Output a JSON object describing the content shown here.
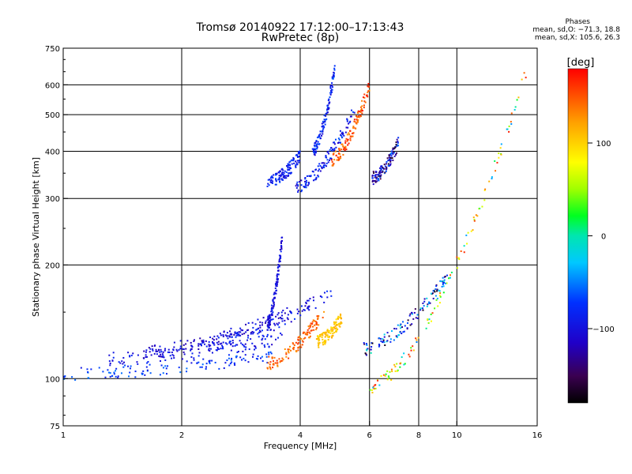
{
  "header": {
    "title": "Tromsø 20140922 17:12:00–17:13:43",
    "subtitle": "RwPretec (8p)",
    "phase_heading": "Phases",
    "phase_o": "mean, sd,O: −71.3, 18.8",
    "phase_x": "mean, sd,X: 105.6, 26.3"
  },
  "chart_data": {
    "type": "scatter",
    "title": "Tromsø 20140922 17:12:00–17:13:43",
    "subtitle": "RwPretec (8p)",
    "xlabel": "Frequency [MHz]",
    "ylabel": "Stationary phase Virtual Height [km]",
    "xscale": "log",
    "yscale": "log",
    "xlim": [
      1,
      16
    ],
    "ylim": [
      75,
      750
    ],
    "xticks": [
      1,
      2,
      4,
      6,
      8,
      10,
      16
    ],
    "xtick_labels": [
      "1",
      "2",
      "4",
      "6",
      "8",
      "10",
      "16"
    ],
    "yticks": [
      75,
      100,
      200,
      300,
      400,
      500,
      600,
      750
    ],
    "ytick_labels": [
      "75",
      "100",
      "200",
      "300",
      "400",
      "500",
      "600",
      "750"
    ],
    "x_gridlines": [
      2,
      4,
      6,
      8,
      10
    ],
    "y_gridlines": [
      100,
      200,
      300,
      400,
      500,
      600
    ],
    "grid": true,
    "colorbar": {
      "label": "[deg]",
      "range": [
        -180,
        180
      ],
      "ticks": [
        100,
        0,
        -100
      ],
      "tick_labels": [
        "100",
        "0",
        "−100"
      ],
      "colormap": "rainbow (black → purple → blue → cyan → green → yellow → orange → red)"
    },
    "traces": [
      {
        "name": "",
        "x_range": [
          1.0,
          3.4
        ],
        "h_start": 103,
        "h_end": 115,
        "phase": -75,
        "spread": 25
      },
      {
        "name": "",
        "x_range": [
          1.3,
          3.6
        ],
        "h_start": 113,
        "h_end": 128,
        "phase": -95,
        "spread": 20
      },
      {
        "name": "",
        "x_range": [
          1.6,
          3.8
        ],
        "h_start": 118,
        "h_end": 150,
        "phase": -105,
        "spread": 20
      },
      {
        "name": "",
        "x_range": [
          2.2,
          4.8
        ],
        "h_start": 122,
        "h_end": 170,
        "phase": -95,
        "spread": 25
      },
      {
        "name": "",
        "x_range": [
          3.3,
          3.6
        ],
        "h_start": 140,
        "h_end": 235,
        "phase": -100,
        "spread": 20
      },
      {
        "name": "",
        "x_range": [
          3.3,
          4.6
        ],
        "h_start": 110,
        "h_end": 150,
        "phase": 145,
        "spread": 20
      },
      {
        "name": "",
        "x_range": [
          4.4,
          5.1
        ],
        "h_start": 125,
        "h_end": 145,
        "phase": 105,
        "spread": 15
      },
      {
        "name": "",
        "x_range": [
          3.3,
          4.0
        ],
        "h_start": 330,
        "h_end": 390,
        "phase": -85,
        "spread": 20
      },
      {
        "name": "",
        "x_range": [
          3.9,
          5.5
        ],
        "h_start": 320,
        "h_end": 520,
        "phase": -90,
        "spread": 30
      },
      {
        "name": "",
        "x_range": [
          4.3,
          4.9
        ],
        "h_start": 400,
        "h_end": 660,
        "phase": -85,
        "spread": 25
      },
      {
        "name": "",
        "x_range": [
          4.8,
          6.0
        ],
        "h_start": 380,
        "h_end": 600,
        "phase": 150,
        "spread": 25
      },
      {
        "name": "",
        "x_range": [
          6.1,
          7.1
        ],
        "h_start": 340,
        "h_end": 420,
        "phase": -110,
        "spread": 60
      },
      {
        "name": "",
        "x_range": [
          5.8,
          9.5
        ],
        "h_start": 120,
        "h_end": 190,
        "phase": -90,
        "spread": 90
      },
      {
        "name": "",
        "x_range": [
          6.0,
          15.0
        ],
        "h_start": 95,
        "h_end": 650,
        "phase": 60,
        "spread": 110
      }
    ]
  }
}
